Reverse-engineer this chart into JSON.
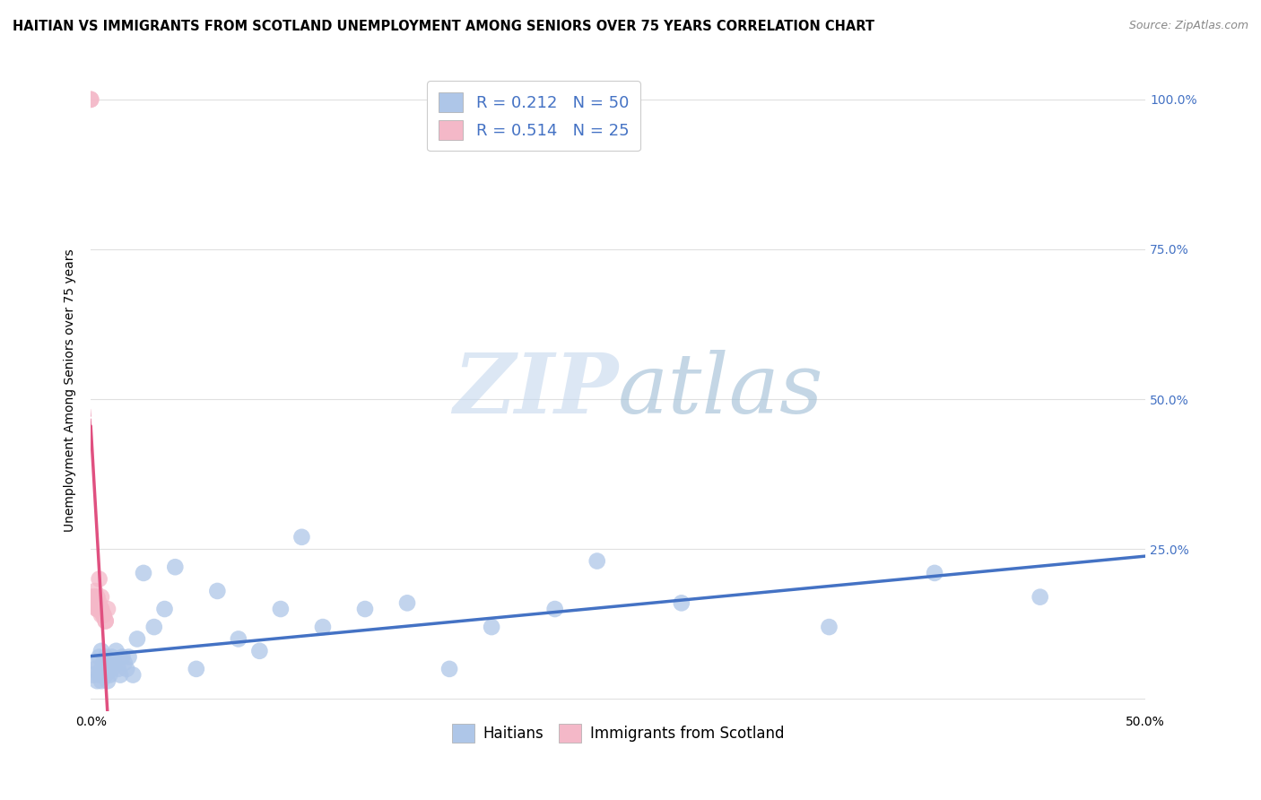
{
  "title": "HAITIAN VS IMMIGRANTS FROM SCOTLAND UNEMPLOYMENT AMONG SENIORS OVER 75 YEARS CORRELATION CHART",
  "source": "Source: ZipAtlas.com",
  "ylabel": "Unemployment Among Seniors over 75 years",
  "xlim": [
    0.0,
    0.5
  ],
  "ylim": [
    -0.02,
    1.05
  ],
  "xtick_positions": [
    0.0,
    0.05,
    0.1,
    0.15,
    0.2,
    0.25,
    0.3,
    0.35,
    0.4,
    0.45,
    0.5
  ],
  "xticklabels": [
    "0.0%",
    "",
    "",
    "",
    "",
    "",
    "",
    "",
    "",
    "",
    "50.0%"
  ],
  "ytick_positions": [
    0.0,
    0.25,
    0.5,
    0.75,
    1.0
  ],
  "ytick_labels_right": [
    "",
    "25.0%",
    "50.0%",
    "75.0%",
    "100.0%"
  ],
  "watermark_zip": "ZIP",
  "watermark_atlas": "atlas",
  "blue_color": "#aec6e8",
  "pink_color": "#f4b8c8",
  "blue_line_color": "#4472c4",
  "pink_line_color": "#e05080",
  "blue_R": 0.212,
  "blue_N": 50,
  "pink_R": 0.514,
  "pink_N": 25,
  "haitians_x": [
    0.001,
    0.002,
    0.003,
    0.003,
    0.004,
    0.004,
    0.005,
    0.005,
    0.005,
    0.006,
    0.006,
    0.007,
    0.007,
    0.008,
    0.008,
    0.009,
    0.009,
    0.01,
    0.01,
    0.011,
    0.012,
    0.013,
    0.014,
    0.015,
    0.016,
    0.017,
    0.018,
    0.02,
    0.022,
    0.025,
    0.03,
    0.035,
    0.04,
    0.05,
    0.06,
    0.07,
    0.08,
    0.09,
    0.1,
    0.11,
    0.13,
    0.15,
    0.17,
    0.19,
    0.22,
    0.24,
    0.28,
    0.35,
    0.4,
    0.45
  ],
  "haitians_y": [
    0.04,
    0.05,
    0.03,
    0.06,
    0.04,
    0.07,
    0.03,
    0.05,
    0.08,
    0.04,
    0.06,
    0.04,
    0.07,
    0.05,
    0.03,
    0.06,
    0.04,
    0.05,
    0.07,
    0.06,
    0.08,
    0.05,
    0.04,
    0.07,
    0.06,
    0.05,
    0.07,
    0.04,
    0.1,
    0.21,
    0.12,
    0.15,
    0.22,
    0.05,
    0.18,
    0.1,
    0.08,
    0.15,
    0.27,
    0.12,
    0.15,
    0.16,
    0.05,
    0.12,
    0.15,
    0.23,
    0.16,
    0.12,
    0.21,
    0.17
  ],
  "scotland_x": [
    0.0,
    0.0,
    0.001,
    0.001,
    0.002,
    0.002,
    0.002,
    0.003,
    0.003,
    0.003,
    0.003,
    0.004,
    0.004,
    0.004,
    0.004,
    0.005,
    0.005,
    0.005,
    0.005,
    0.006,
    0.006,
    0.006,
    0.007,
    0.007,
    0.008
  ],
  "scotland_y": [
    1.0,
    1.0,
    0.17,
    0.17,
    0.18,
    0.17,
    0.16,
    0.17,
    0.17,
    0.15,
    0.15,
    0.16,
    0.15,
    0.15,
    0.2,
    0.15,
    0.15,
    0.14,
    0.17,
    0.14,
    0.14,
    0.14,
    0.13,
    0.13,
    0.15
  ],
  "grid_color": "#e0e0e0",
  "background_color": "#ffffff",
  "title_fontsize": 10.5,
  "axis_label_fontsize": 10,
  "tick_fontsize": 10,
  "right_tick_color": "#4472c4",
  "legend_fontsize": 13
}
